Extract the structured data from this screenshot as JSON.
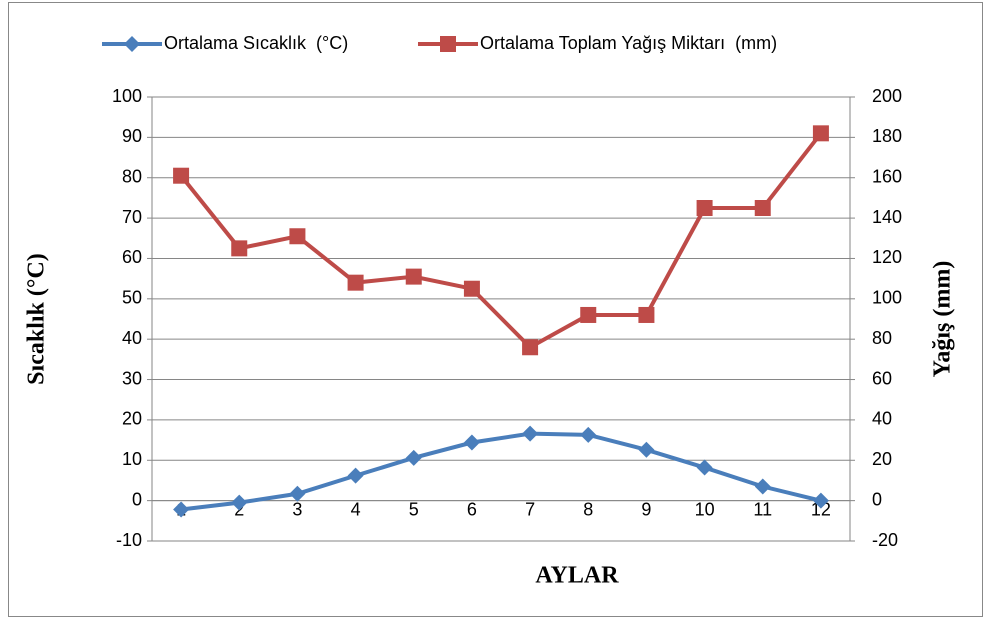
{
  "chart_data": {
    "type": "line",
    "x_label": "AYLAR",
    "y_label": "Sıcaklık (°C)",
    "y2_label": "Yağış (mm)",
    "categories": [
      "1",
      "2",
      "3",
      "4",
      "5",
      "6",
      "7",
      "8",
      "9",
      "10",
      "11",
      "12"
    ],
    "series": [
      {
        "name": "Ortalama Sıcaklık  (°C)",
        "color": "#4a7ebb",
        "marker": "diamond",
        "values": [
          -2.2,
          -0.5,
          1.7,
          6.2,
          10.6,
          14.4,
          16.6,
          16.3,
          12.6,
          8.2,
          3.5,
          0
        ]
      },
      {
        "name": "Ortalama Toplam Yağış Miktarı  (mm)",
        "color": "#be4b48",
        "marker": "square",
        "axis": "y2",
        "values": [
          161,
          125,
          131,
          108,
          111,
          105,
          76,
          92,
          92,
          145,
          145,
          182
        ]
      }
    ],
    "ylim": [
      -10,
      100
    ],
    "yticks": [
      -10,
      0,
      10,
      20,
      30,
      40,
      50,
      60,
      70,
      80,
      90,
      100
    ],
    "y2lim": [
      -20,
      200
    ],
    "y2ticks": [
      -20,
      0,
      20,
      40,
      60,
      80,
      100,
      120,
      140,
      160,
      180,
      200
    ],
    "grid": true,
    "legend": "top"
  }
}
